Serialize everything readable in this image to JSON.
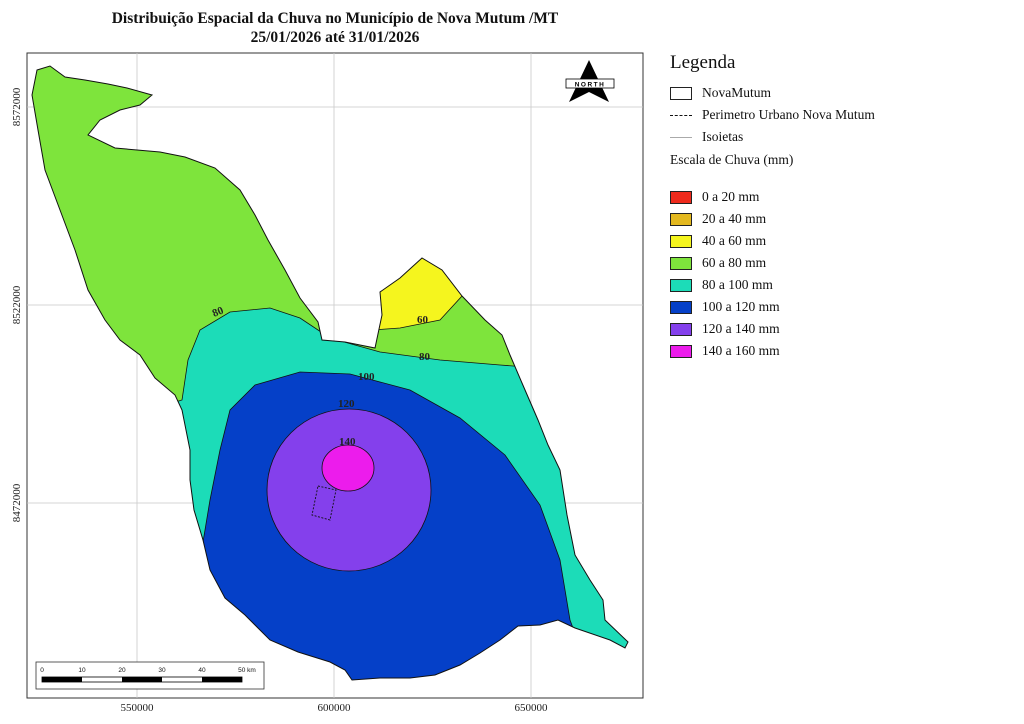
{
  "title": {
    "line1": "Distribuição Espacial da Chuva no Município de Nova Mutum /MT",
    "line2": "25/01/2026 até 31/01/2026"
  },
  "north_arrow": {
    "label": "NORTH"
  },
  "axes": {
    "x_ticks": [
      "550000",
      "600000",
      "650000"
    ],
    "y_ticks": [
      "8572000",
      "8522000",
      "8472000"
    ]
  },
  "contours": {
    "c80_a": "80",
    "c60": "60",
    "c80_b": "80",
    "c100": "100",
    "c120": "120",
    "c140": "140"
  },
  "scale_bar": {
    "ticks": [
      "0",
      "10",
      "20",
      "30",
      "40",
      "50 km"
    ]
  },
  "legend": {
    "title": "Legenda",
    "features": [
      {
        "label": "NovaMutum",
        "symbol": "box"
      },
      {
        "label": "Perimetro Urbano Nova Mutum",
        "symbol": "dashed"
      },
      {
        "label": "Isoietas",
        "symbol": "grey-line"
      }
    ],
    "scale_title": "Escala de Chuva (mm)",
    "classes": [
      {
        "label": "0 a 20 mm",
        "color": "#ee2a1c"
      },
      {
        "label": "20 a 40 mm",
        "color": "#e3b81f"
      },
      {
        "label": "40 a 60 mm",
        "color": "#f5f51e"
      },
      {
        "label": "60 a 80 mm",
        "color": "#7ee43c"
      },
      {
        "label": "80 a 100 mm",
        "color": "#1cdcb8"
      },
      {
        "label": "100 a 120 mm",
        "color": "#0540c8"
      },
      {
        "label": "120 a 140 mm",
        "color": "#8440ec"
      },
      {
        "label": "140 a 160 mm",
        "color": "#ec1cec"
      }
    ]
  }
}
